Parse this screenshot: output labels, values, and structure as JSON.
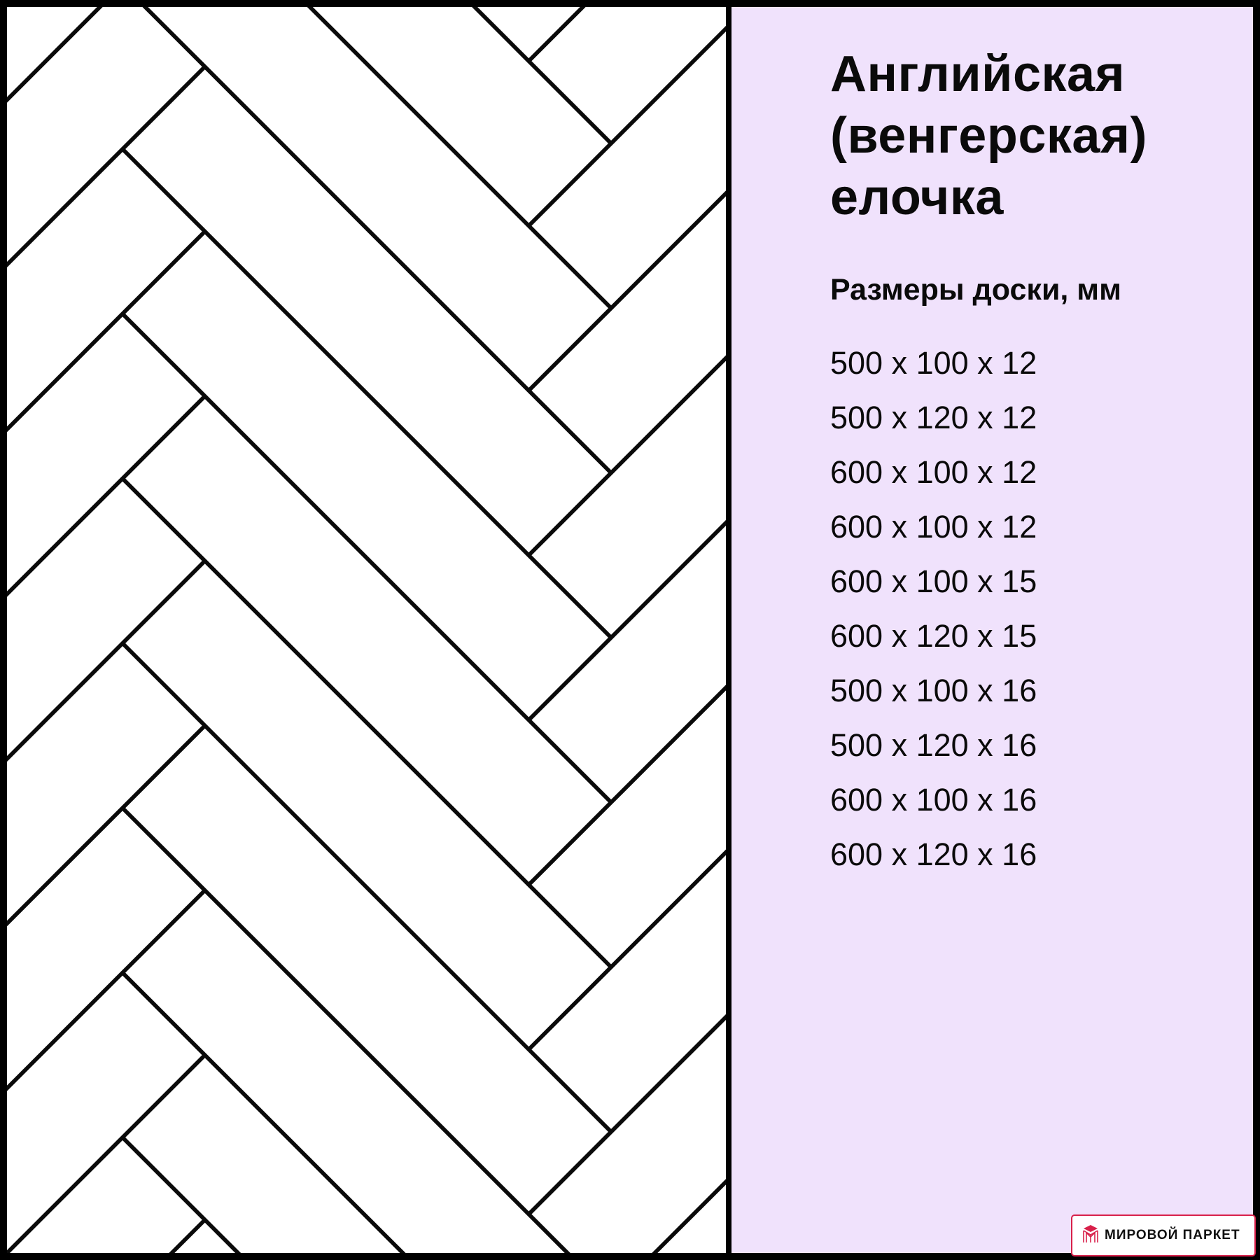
{
  "title_lines": [
    "Английская",
    "(венгерская)",
    "елочка"
  ],
  "subtitle": "Размеры доски, мм",
  "sizes": [
    "500 x 100 x 12",
    "500 x 120 x 12",
    "600 x 100 x 12",
    "600 x 100 x 12",
    "600 x 100 x 15",
    "600 x 120 x 15",
    "500 x 100 x 16",
    "500 x 120 x 16",
    "600 x 100 x 16",
    "600 x 120 x 16"
  ],
  "logo": {
    "text": "МИРОВОЙ ПАРКЕТ",
    "icon": "parquet-cube-logo-icon",
    "color": "#d8204a"
  },
  "colors": {
    "panel": "#f0e2fc",
    "lines": "#0a0a0a",
    "pattern_bg": "#ffffff"
  }
}
